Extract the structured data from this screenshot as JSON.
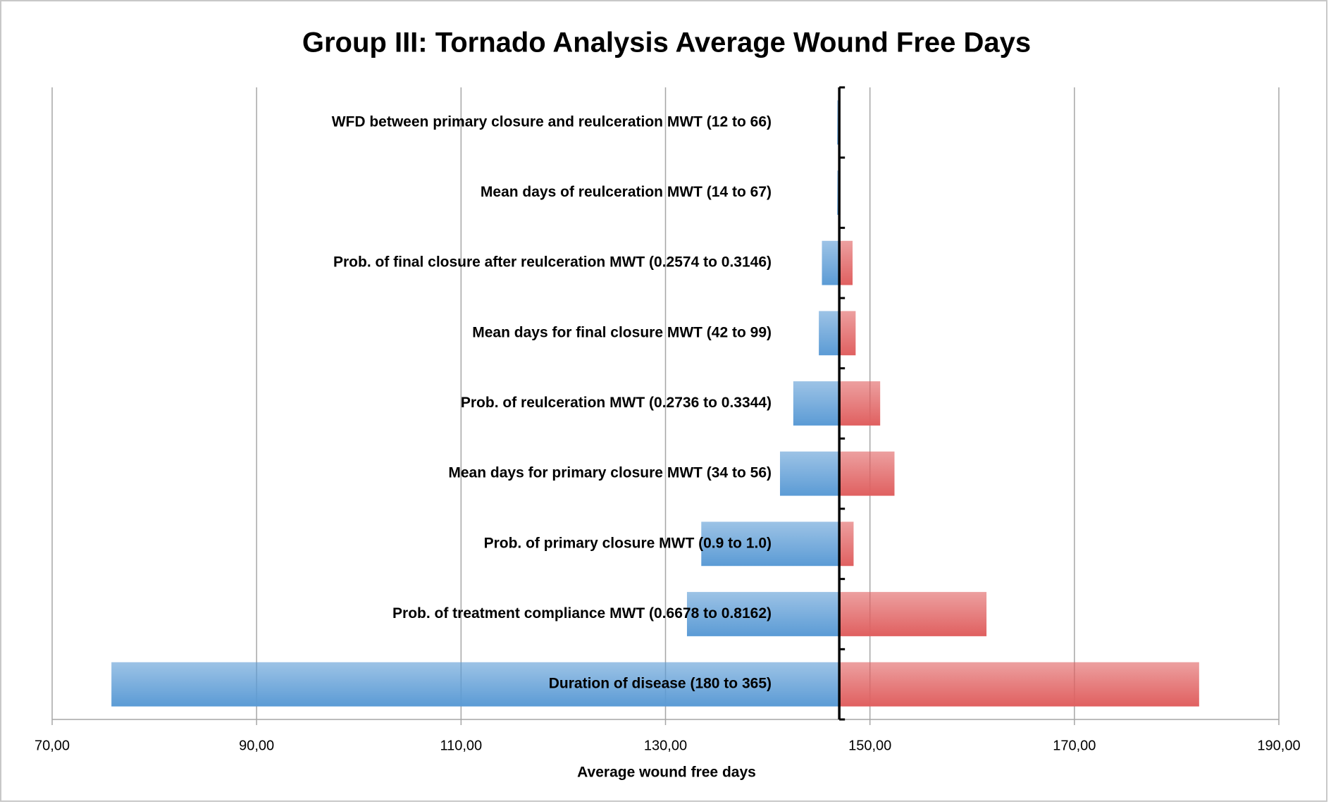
{
  "chart_data": {
    "type": "tornado",
    "title": "Group III: Tornado Analysis Average Wound Free Days",
    "x_label": "Average wound free days",
    "categories": [
      "WFD between primary closure and reulceration MWT (12 to 66)",
      "Mean days of reulceration MWT (14 to 67)",
      "Prob. of final closure after reulceration MWT (0.2574 to 0.3146)",
      "Mean days for final closure MWT (42 to 99)",
      "Prob. of reulceration MWT (0.2736 to 0.3344)",
      "Mean days for primary closure MWT (34 to 56)",
      "Prob. of primary closure MWT (0.9 to 1.0)",
      "Prob. of treatment compliance MWT (0.6678 to 0.8162)",
      "Duration of disease (180 to 365)"
    ],
    "base": 147.0,
    "series": [
      {
        "color": "#5b9bd5",
        "values": [
          146.8,
          146.8,
          145.3,
          145.0,
          142.5,
          141.2,
          133.5,
          132.1,
          75.8
        ]
      },
      {
        "color": "#e06060",
        "values": [
          147.1,
          147.1,
          148.3,
          148.6,
          151.0,
          152.4,
          148.4,
          161.4,
          182.2
        ]
      }
    ],
    "xlim": [
      70,
      190
    ],
    "xticks": [
      {
        "value": 70,
        "label": "70,00"
      },
      {
        "value": 90,
        "label": "90,00"
      },
      {
        "value": 110,
        "label": "110,00"
      },
      {
        "value": 130,
        "label": "130,00"
      },
      {
        "value": 150,
        "label": "150,00"
      },
      {
        "value": 170,
        "label": "170,00"
      },
      {
        "value": 190,
        "label": "190,00"
      }
    ],
    "grid": true
  }
}
